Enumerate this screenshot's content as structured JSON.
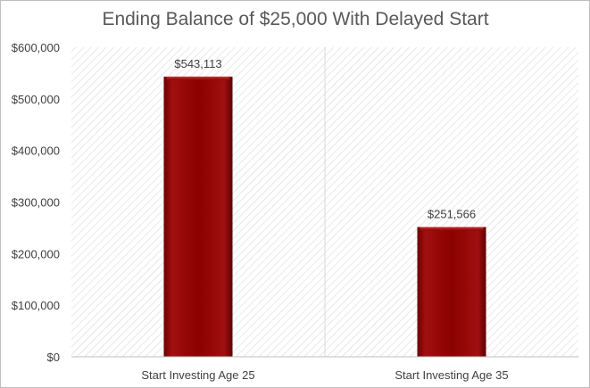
{
  "chart_data": {
    "type": "bar",
    "title": "Ending Balance of $25,000 With Delayed Start",
    "categories": [
      "Start Investing Age 25",
      "Start Investing Age 35"
    ],
    "values": [
      543113,
      251566
    ],
    "data_labels": [
      "$543,113",
      "$251,566"
    ],
    "xlabel": "",
    "ylabel": "",
    "ylim": [
      0,
      600000
    ],
    "yticks": [
      0,
      100000,
      200000,
      300000,
      400000,
      500000,
      600000
    ],
    "ytick_labels": [
      "$0",
      "$100,000",
      "$200,000",
      "$300,000",
      "$400,000",
      "$500,000",
      "$600,000"
    ],
    "grid": false,
    "legend": "none",
    "bar_color": "#8b0000",
    "plot_background": "diagonal-hatch"
  }
}
